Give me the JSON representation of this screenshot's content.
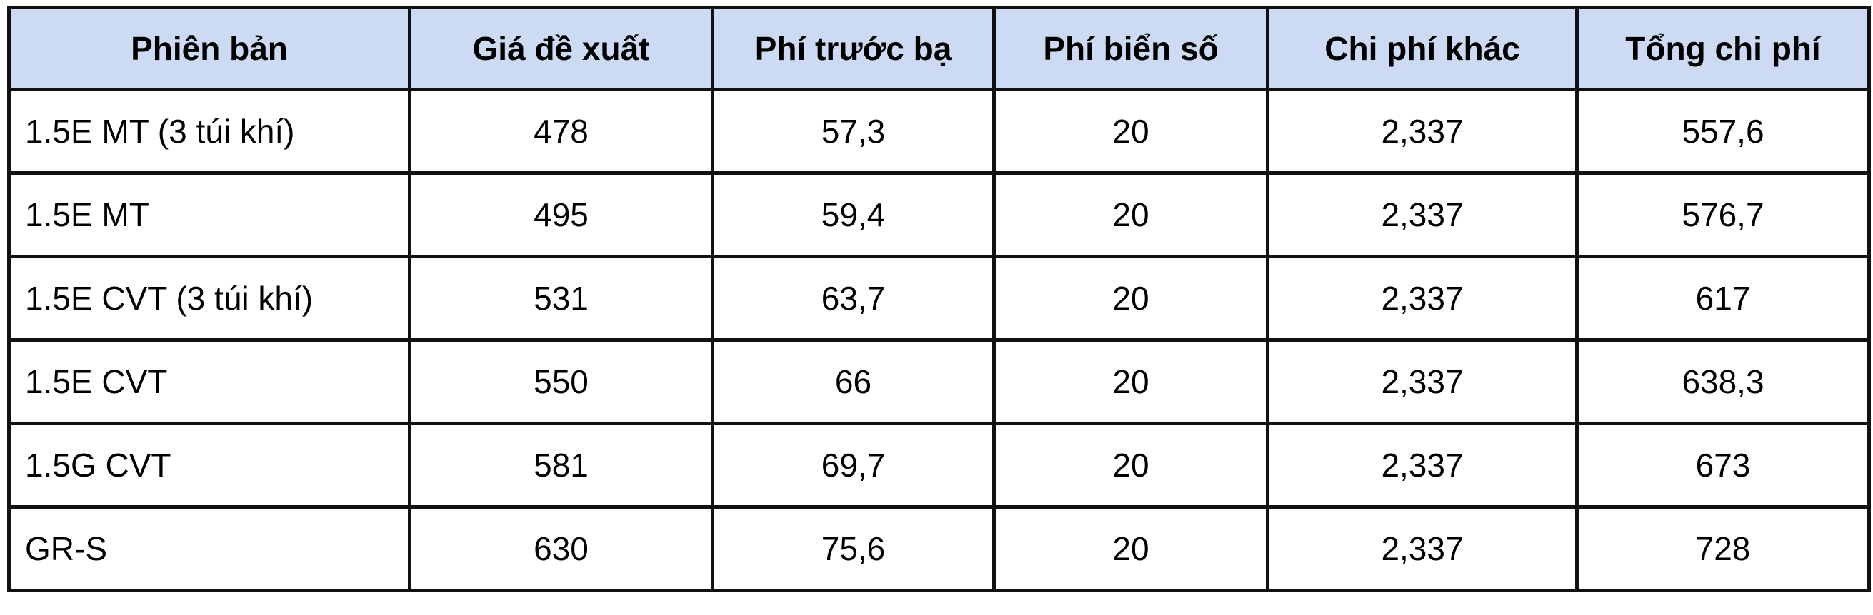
{
  "table": {
    "headers": [
      "Phiên bản",
      "Giá đề xuất",
      "Phí trước bạ",
      "Phí biển số",
      "Chi phí khác",
      "Tổng chi phí"
    ],
    "rows": [
      [
        "1.5E MT (3 túi khí)",
        "478",
        "57,3",
        "20",
        "2,337",
        "557,6"
      ],
      [
        "1.5E MT",
        "495",
        "59,4",
        "20",
        "2,337",
        "576,7"
      ],
      [
        "1.5E CVT (3 túi khí)",
        "531",
        "63,7",
        "20",
        "2,337",
        "617"
      ],
      [
        "1.5E CVT",
        "550",
        "66",
        "20",
        "2,337",
        "638,3"
      ],
      [
        "1.5G CVT",
        "581",
        "69,7",
        "20",
        "2,337",
        "673"
      ],
      [
        "GR-S",
        "630",
        "75,6",
        "20",
        "2,337",
        "728"
      ]
    ],
    "header_color": "#ccdbf3"
  }
}
